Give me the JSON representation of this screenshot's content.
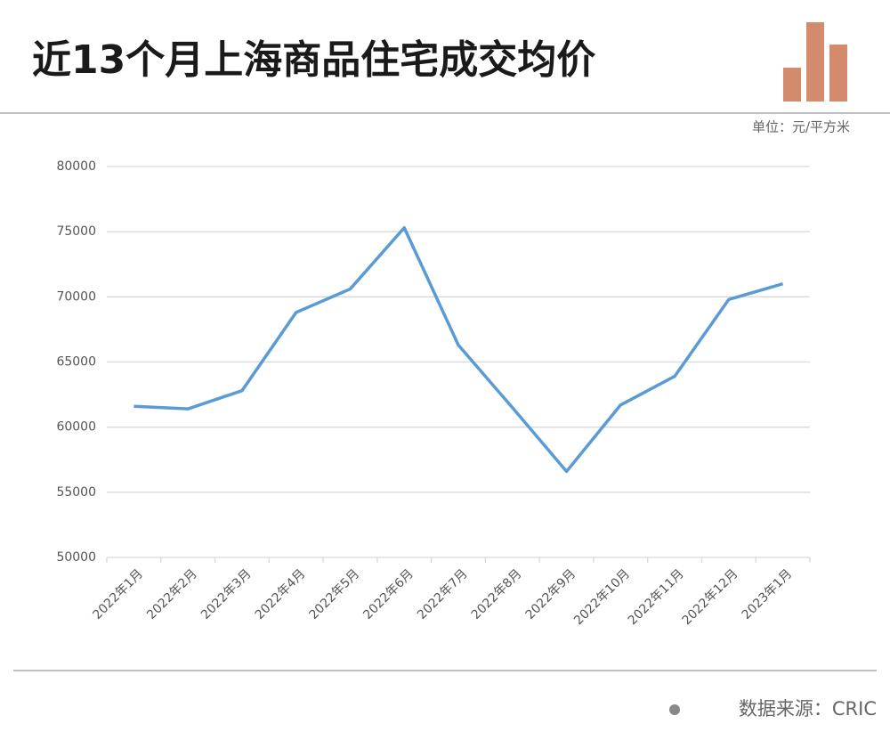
{
  "chart_data": {
    "type": "line",
    "title": "近13个月上海商品住宅成交均价",
    "unit_note": "单位：元/平方米",
    "source": "数据来源：CRIC",
    "categories": [
      "2022年1月",
      "2022年2月",
      "2022年3月",
      "2022年4月",
      "2022年5月",
      "2022年6月",
      "2022年7月",
      "2022年8月",
      "2022年9月",
      "2022年10月",
      "2022年11月",
      "2022年12月",
      "2023年1月"
    ],
    "values": [
      61600,
      61400,
      62800,
      68800,
      70600,
      75300,
      66300,
      61500,
      56600,
      61700,
      63900,
      69800,
      71000
    ],
    "color": "#5b9bd5",
    "ylim": [
      50000,
      80000
    ],
    "yticks": [
      50000,
      55000,
      60000,
      65000,
      70000,
      75000,
      80000
    ],
    "grid": true
  }
}
